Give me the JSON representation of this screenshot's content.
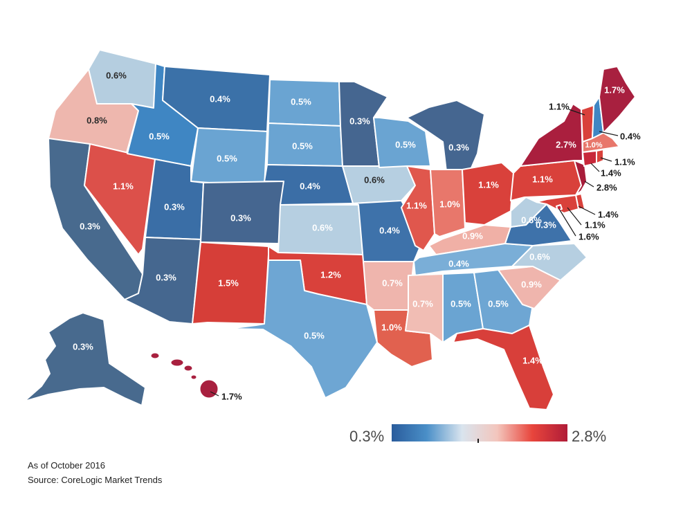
{
  "legend": {
    "min_label": "0.3%",
    "max_label": "2.8%",
    "colors": [
      "#2a5c9c",
      "#4a8fc8",
      "#d9e4ee",
      "#f3c6bd",
      "#e8453c",
      "#b01c38"
    ]
  },
  "footnote": {
    "date": "As of October 2016",
    "source": "Source: CoreLogic Market Trends"
  },
  "states": {
    "WA": {
      "value": "0.6%",
      "color": "#b5cee0"
    },
    "OR": {
      "value": "0.8%",
      "color": "#eeb7ae"
    },
    "CA": {
      "value": "0.3%",
      "color": "#486a8e"
    },
    "NV": {
      "value": "1.1%",
      "color": "#dc504a"
    },
    "ID": {
      "value": "0.5%",
      "color": "#3f86c3"
    },
    "MT": {
      "value": "0.4%",
      "color": "#3b71a8"
    },
    "WY": {
      "value": "0.5%",
      "color": "#6aa4d2"
    },
    "UT": {
      "value": "0.3%",
      "color": "#3a6ea6"
    },
    "AZ": {
      "value": "0.3%",
      "color": "#45678f"
    },
    "CO": {
      "value": "0.3%",
      "color": "#456690"
    },
    "NM": {
      "value": "1.5%",
      "color": "#d63e38"
    },
    "ND": {
      "value": "0.5%",
      "color": "#6aa4d2"
    },
    "SD": {
      "value": "0.5%",
      "color": "#6aa4d2"
    },
    "NE": {
      "value": "0.4%",
      "color": "#3b6ea6"
    },
    "KS": {
      "value": "0.6%",
      "color": "#b6cfe1"
    },
    "OK": {
      "value": "1.2%",
      "color": "#d9413b"
    },
    "TX": {
      "value": "0.5%",
      "color": "#6ea6d3"
    },
    "MN": {
      "value": "0.3%",
      "color": "#456690"
    },
    "IA": {
      "value": "0.6%",
      "color": "#b6cfe1"
    },
    "MO": {
      "value": "0.4%",
      "color": "#3e72aa"
    },
    "AR": {
      "value": "0.7%",
      "color": "#efb5ad"
    },
    "LA": {
      "value": "1.0%",
      "color": "#e1614f"
    },
    "WI": {
      "value": "0.5%",
      "color": "#6aa4d2"
    },
    "IL": {
      "value": "1.1%",
      "color": "#e0574d"
    },
    "MS": {
      "value": "0.7%",
      "color": "#f1bdb4"
    },
    "MI": {
      "value": "0.3%",
      "color": "#456690"
    },
    "IN": {
      "value": "1.0%",
      "color": "#e8776b"
    },
    "OH": {
      "value": "1.1%",
      "color": "#d9413b"
    },
    "KY": {
      "value": "0.9%",
      "color": "#f0b0a6"
    },
    "TN": {
      "value": "0.4%",
      "color": "#7aaed7"
    },
    "AL": {
      "value": "0.5%",
      "color": "#6aa4d2"
    },
    "GA": {
      "value": "0.5%",
      "color": "#6ea6d3"
    },
    "FL": {
      "value": "1.4%",
      "color": "#d83f3a"
    },
    "SC": {
      "value": "0.9%",
      "color": "#efb5ad"
    },
    "NC": {
      "value": "0.6%",
      "color": "#b6cfe1"
    },
    "VA": {
      "value": "0.3%",
      "color": "#3e72aa"
    },
    "WV": {
      "value": "0.6%",
      "color": "#b6cfe1"
    },
    "PA": {
      "value": "1.1%",
      "color": "#d9413b"
    },
    "NY": {
      "value": "2.7%",
      "color": "#aa1f3e"
    },
    "VT": {
      "value": "1.1%",
      "color": "#d9413b"
    },
    "NH": {
      "value": "0.4%",
      "color": "#3f86c3"
    },
    "ME": {
      "value": "1.7%",
      "color": "#a8203f"
    },
    "MA": {
      "value": "1.0%",
      "color": "#e8776b"
    },
    "RI": {
      "value": "1.1%",
      "color": "#d9413b"
    },
    "CT": {
      "value": "1.4%",
      "color": "#c8283a"
    },
    "NJ": {
      "value": "2.8%",
      "color": "#a81d3a"
    },
    "DE": {
      "value": "1.4%",
      "color": "#d9413b"
    },
    "MD": {
      "value": "1.1%",
      "color": "#d9413b"
    },
    "DC": {
      "value": "1.6%",
      "color": "#c8283a"
    },
    "AK": {
      "value": "0.3%",
      "color": "#486a8e"
    },
    "HI": {
      "value": "1.7%",
      "color": "#a8203f"
    }
  }
}
